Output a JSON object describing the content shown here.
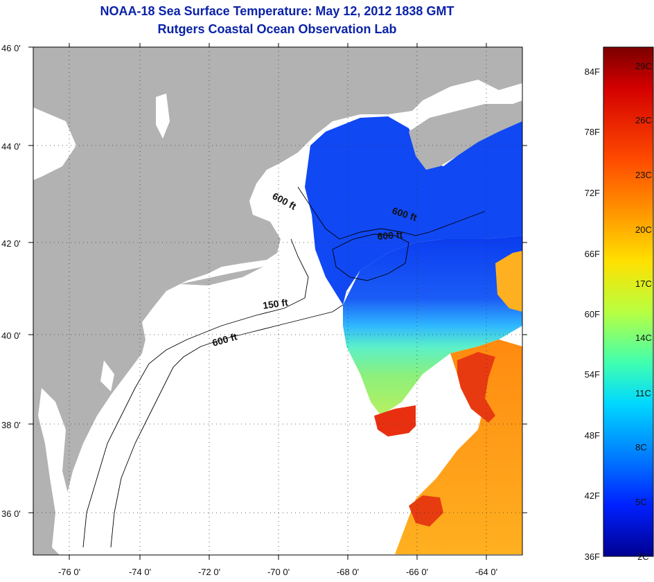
{
  "title": "NOAA-18 Sea Surface Temperature:  May 12, 2012 1838 GMT",
  "subtitle": "Rutgers Coastal Ocean Observation Lab",
  "map": {
    "lon_range": [
      -77,
      -63
    ],
    "lat_range": [
      35,
      46
    ],
    "lon_ticks": [
      "-76 0'",
      "-74 0'",
      "-72 0'",
      "-70 0'",
      "-68 0'",
      "-66 0'",
      "-64 0'"
    ],
    "lat_ticks": [
      "46 0'",
      "44 0'",
      "42 0'",
      "40 0'",
      "38 0'",
      "36 0'"
    ],
    "grid": "dotted",
    "land_color": "#b2b2b2",
    "nodata_color": "#ffffff",
    "contour_labels": [
      "600 ft",
      "600 ft",
      "600 ft",
      "150 ft",
      "600 ft"
    ]
  },
  "colorbar": {
    "fahrenheit_labels": [
      "84F",
      "78F",
      "72F",
      "66F",
      "60F",
      "54F",
      "48F",
      "42F",
      "36F"
    ],
    "celsius_labels": [
      "29C",
      "26C",
      "23C",
      "20C",
      "17C",
      "14C",
      "11C",
      "8C",
      "5C",
      "2C"
    ],
    "colors": [
      "#7a0000",
      "#d40000",
      "#ff4a00",
      "#ff9a00",
      "#ffe000",
      "#b8ff40",
      "#40ffb0",
      "#00d8ff",
      "#0080ff",
      "#0020ff",
      "#000090"
    ]
  }
}
